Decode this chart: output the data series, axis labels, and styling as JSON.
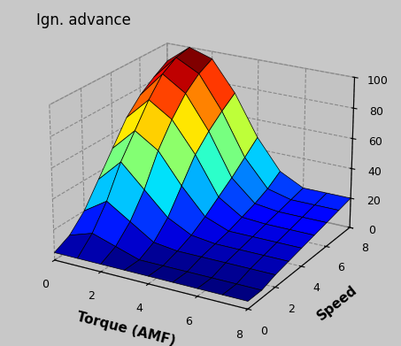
{
  "title": "Ign. advance",
  "xlabel": "Torque (AMF)",
  "ylabel": "Speed",
  "x_ticks": [
    0,
    2,
    4,
    6,
    8
  ],
  "y_ticks": [
    0,
    2,
    4,
    6,
    8
  ],
  "z_ticks": [
    0,
    20,
    40,
    60,
    80,
    100
  ],
  "figsize": [
    4.53,
    3.91
  ],
  "dpi": 100,
  "elev": 22,
  "azim": -60,
  "surface_data": [
    [
      5,
      5,
      5,
      5,
      5,
      5,
      5,
      5,
      5
    ],
    [
      10,
      15,
      10,
      5,
      5,
      5,
      5,
      5,
      5
    ],
    [
      20,
      30,
      20,
      10,
      8,
      8,
      8,
      8,
      8
    ],
    [
      35,
      50,
      35,
      20,
      12,
      10,
      10,
      10,
      10
    ],
    [
      50,
      65,
      55,
      35,
      18,
      12,
      12,
      12,
      12
    ],
    [
      65,
      80,
      70,
      50,
      25,
      15,
      14,
      14,
      14
    ],
    [
      75,
      92,
      82,
      60,
      32,
      18,
      16,
      16,
      16
    ],
    [
      82,
      98,
      90,
      68,
      40,
      22,
      18,
      18,
      18
    ],
    [
      88,
      100,
      95,
      75,
      48,
      28,
      20,
      20,
      20
    ]
  ],
  "background_color": "#c8c8c8",
  "pane_color": "#c0c0c0",
  "grid_color": "#888888",
  "edge_color": "black",
  "title_fontsize": 12,
  "label_fontsize": 11
}
